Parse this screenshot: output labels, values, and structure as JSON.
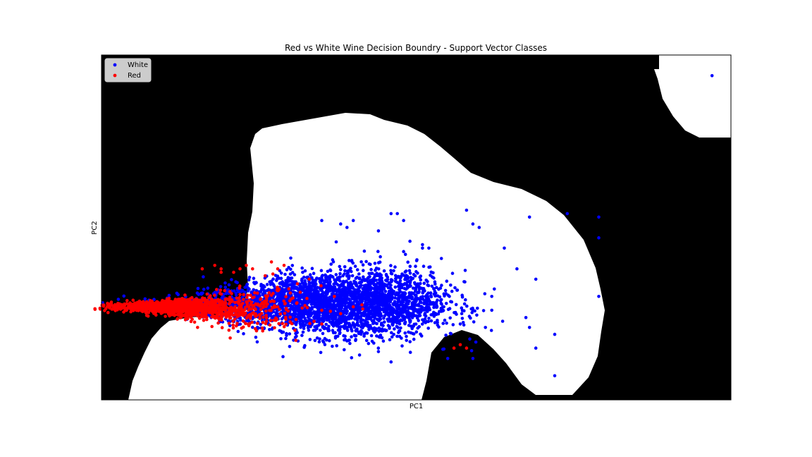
{
  "chart_data": {
    "type": "scatter",
    "title": "Red vs White Wine Decision Boundry - Support Vector Classes",
    "xlabel": "PC1",
    "ylabel": "PC2",
    "xticks": "none",
    "yticks": "none",
    "grid": false,
    "legend_placement": "top-left",
    "background_region": "black",
    "decision_region_color": "white",
    "xlim": [
      0,
      100
    ],
    "ylim": [
      0,
      100
    ],
    "series": [
      {
        "name": "White",
        "color": "#0000ff",
        "cluster": {
          "center": [
            34,
            28
          ],
          "spread": [
            9,
            4
          ],
          "count": 2600
        },
        "cluster2": {
          "center": [
            46,
            28
          ],
          "spread": [
            5,
            3.5
          ],
          "count": 700
        },
        "outliers": [
          [
            35,
            52
          ],
          [
            40,
            52
          ],
          [
            38,
            51
          ],
          [
            39,
            50
          ],
          [
            44,
            49
          ],
          [
            46,
            54
          ],
          [
            47,
            54
          ],
          [
            48,
            52
          ],
          [
            58,
            55
          ],
          [
            60,
            50
          ],
          [
            51,
            45
          ],
          [
            51,
            44
          ],
          [
            49,
            46
          ],
          [
            48,
            43
          ],
          [
            52,
            44
          ],
          [
            54,
            41
          ],
          [
            59,
            51
          ],
          [
            64,
            44
          ],
          [
            66,
            38
          ],
          [
            69,
            35
          ],
          [
            62,
            26
          ],
          [
            57,
            22
          ],
          [
            59,
            12
          ],
          [
            68,
            21
          ],
          [
            72,
            19
          ],
          [
            61,
            21
          ],
          [
            62,
            30
          ],
          [
            79,
            30
          ],
          [
            68,
            53
          ],
          [
            74,
            54
          ],
          [
            79,
            53
          ],
          [
            79,
            47
          ],
          [
            97,
            94
          ],
          [
            69,
            15
          ],
          [
            72,
            7
          ],
          [
            55,
            12
          ],
          [
            44,
            14
          ],
          [
            46,
            11
          ],
          [
            41,
            13
          ],
          [
            43,
            17
          ]
        ]
      },
      {
        "name": "Red",
        "color": "#ff0000",
        "cluster": {
          "center": [
            10,
            27
          ],
          "spread": [
            4,
            2.5
          ],
          "count": 1100
        },
        "cluster2": {
          "center": [
            20,
            26
          ],
          "spread": [
            6,
            3.5
          ],
          "count": 500
        },
        "outliers": [
          [
            16,
            38
          ],
          [
            18,
            39
          ],
          [
            19,
            38
          ],
          [
            22,
            38
          ],
          [
            23,
            39
          ],
          [
            19,
            37
          ],
          [
            21,
            37
          ],
          [
            24,
            38
          ],
          [
            26,
            36
          ],
          [
            27,
            40
          ],
          [
            29,
            39
          ],
          [
            28,
            38
          ],
          [
            33,
            35
          ],
          [
            30,
            31
          ],
          [
            31,
            28
          ],
          [
            35,
            26
          ],
          [
            37,
            30
          ],
          [
            38,
            25
          ],
          [
            40,
            27
          ],
          [
            35,
            22
          ],
          [
            57,
            16
          ],
          [
            58,
            15
          ],
          [
            56,
            15
          ]
        ]
      }
    ]
  }
}
